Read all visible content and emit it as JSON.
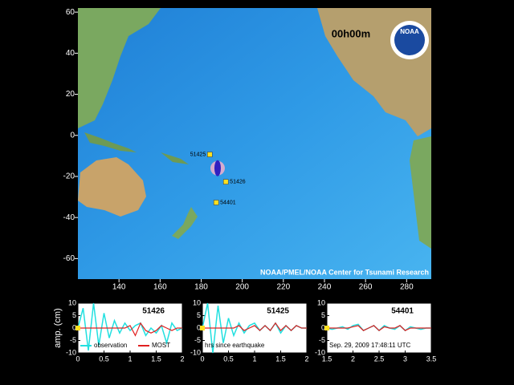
{
  "map": {
    "time_label": "00h00m",
    "credit": "NOAA/PMEL/NOAA Center for Tsunami Research",
    "logo_text": "NOAA",
    "xlim": [
      120,
      292
    ],
    "ylim": [
      -70,
      62
    ],
    "xticks": [
      140,
      160,
      180,
      200,
      220,
      240,
      260,
      280
    ],
    "yticks": [
      60,
      40,
      20,
      0,
      -20,
      -40,
      -60
    ],
    "epicenter": {
      "x": 188,
      "y": -16
    },
    "stations": [
      {
        "name": "51425",
        "x": 184.2,
        "y": -9.3
      },
      {
        "name": "51426",
        "x": 192,
        "y": -22.6
      },
      {
        "name": "54401",
        "x": 187.3,
        "y": -32.7
      }
    ]
  },
  "y_label": "amp. (cm)",
  "chart_data": [
    {
      "type": "line",
      "title": "51426",
      "xlim": [
        0,
        2
      ],
      "ylim": [
        -10,
        10
      ],
      "xticks": [
        0,
        0.5,
        1,
        1.5,
        2
      ],
      "yticks": [
        10,
        5,
        0,
        -5,
        -10
      ],
      "x": [
        0,
        0.1,
        0.2,
        0.3,
        0.4,
        0.5,
        0.6,
        0.7,
        0.8,
        0.9,
        1,
        1.1,
        1.2,
        1.3,
        1.4,
        1.5,
        1.6,
        1.7,
        1.8,
        1.9,
        2
      ],
      "series": [
        {
          "name": "observation",
          "color": "#22e0e0",
          "values": [
            0,
            8,
            -9,
            10,
            -7,
            6,
            -4,
            3,
            -2,
            2,
            -1,
            1,
            2,
            -3,
            0,
            -2,
            1,
            -6,
            2,
            -1,
            0
          ]
        },
        {
          "name": "MOST",
          "color": "#e02020",
          "values": [
            0,
            0,
            0,
            0,
            0,
            0,
            0,
            0,
            0,
            0,
            1,
            -3,
            2,
            -1,
            -2,
            -1,
            1,
            0,
            -1,
            0,
            0
          ]
        }
      ]
    },
    {
      "type": "line",
      "title": "51425",
      "annotation": "hrs since earthquake",
      "xlim": [
        0,
        2
      ],
      "ylim": [
        -10,
        10
      ],
      "xticks": [
        0,
        0.5,
        1,
        1.5,
        2
      ],
      "yticks": [
        10,
        5,
        0,
        -5,
        -10
      ],
      "x": [
        0,
        0.1,
        0.2,
        0.3,
        0.4,
        0.5,
        0.6,
        0.7,
        0.8,
        0.9,
        1,
        1.1,
        1.2,
        1.3,
        1.4,
        1.5,
        1.6,
        1.7,
        1.8,
        1.9,
        2
      ],
      "series": [
        {
          "color": "#22e0e0",
          "values": [
            0,
            10,
            -10,
            9,
            -6,
            4,
            -3,
            2,
            -2,
            1,
            2,
            -1,
            1,
            -1,
            2,
            -2,
            1,
            -1,
            1,
            0,
            0
          ]
        },
        {
          "color": "#e02020",
          "values": [
            0,
            0,
            0,
            0,
            0,
            0,
            0,
            1,
            -1,
            0,
            1,
            -1,
            1,
            -1,
            2,
            -1,
            1,
            -1,
            1,
            0,
            0
          ]
        }
      ]
    },
    {
      "type": "line",
      "title": "54401",
      "annotation": "Sep. 29, 2009 17:48:11 UTC",
      "xlim": [
        1.5,
        3.5
      ],
      "ylim": [
        -10,
        10
      ],
      "xticks": [
        1.5,
        2,
        2.5,
        3,
        3.5
      ],
      "yticks": [
        10,
        5,
        0,
        -5,
        -10
      ],
      "x": [
        1.5,
        1.6,
        1.7,
        1.8,
        1.9,
        2,
        2.1,
        2.2,
        2.3,
        2.4,
        2.5,
        2.6,
        2.7,
        2.8,
        2.9,
        3,
        3.1,
        3.2,
        3.3,
        3.4,
        3.5
      ],
      "series": [
        {
          "color": "#22e0e0",
          "values": [
            0,
            -0.5,
            0,
            0.5,
            -0.5,
            1,
            1.5,
            -1,
            0,
            1,
            -1,
            1,
            0,
            -0.5,
            1,
            -1,
            0.5,
            0,
            -0.5,
            0,
            0
          ]
        },
        {
          "color": "#e02020",
          "values": [
            0,
            0,
            0,
            0,
            0,
            0.5,
            1,
            -1,
            0,
            1,
            -1,
            0.5,
            0,
            0,
            1,
            -1,
            0,
            0,
            0,
            0,
            0
          ]
        }
      ]
    }
  ]
}
